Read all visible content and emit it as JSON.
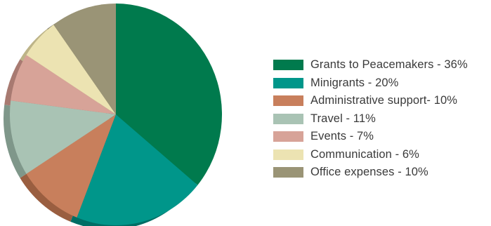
{
  "chart_data": {
    "type": "pie",
    "title": "",
    "legend_position": "right",
    "style": "3d-tilted",
    "slices": [
      {
        "label": "Grants to Peacemakers - 36%",
        "value": 36,
        "color": "#007a4d",
        "side_color": "#005a38"
      },
      {
        "label": "Minigrants - 20%",
        "value": 20,
        "color": "#00968a",
        "side_color": "#006e65"
      },
      {
        "label": "Administrative support- 10%",
        "value": 10,
        "color": "#c87f5c",
        "side_color": "#9a5e40"
      },
      {
        "label": "Travel - 11%",
        "value": 11,
        "color": "#a9c3b4",
        "side_color": "#7f978a"
      },
      {
        "label": "Events - 7%",
        "value": 7,
        "color": "#d7a398",
        "side_color": "#a87a71"
      },
      {
        "label": "Communication - 6%",
        "value": 6,
        "color": "#ece3b2",
        "side_color": "#bdb488"
      },
      {
        "label": "Office expenses - 10%",
        "value": 10,
        "color": "#9a9476",
        "side_color": "#716c55"
      }
    ]
  }
}
